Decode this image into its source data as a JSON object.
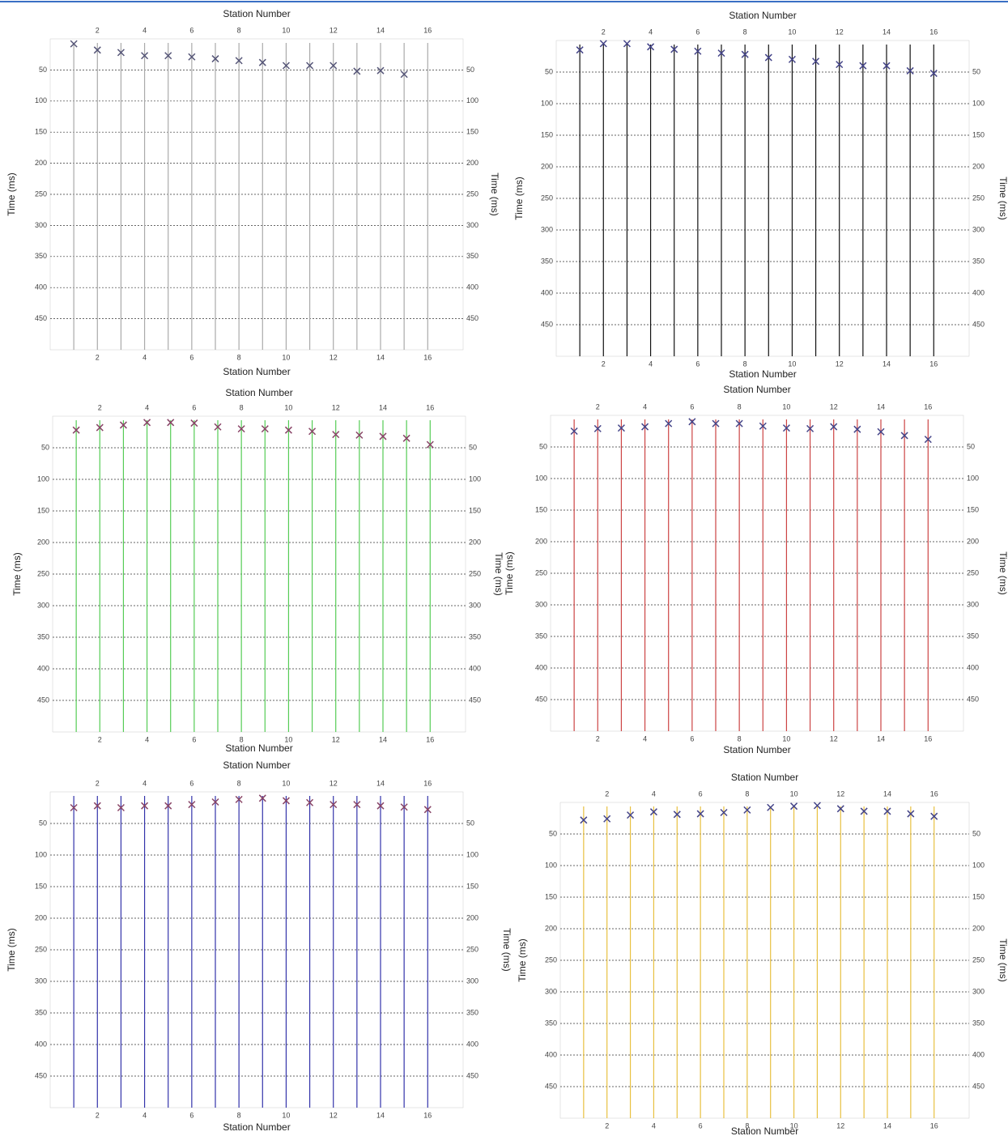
{
  "chart_data": [
    {
      "type": "scatter",
      "xlabel": "Station Number",
      "ylabel": "Time (ms)",
      "x": [
        1,
        2,
        3,
        4,
        5,
        6,
        7,
        8,
        9,
        10,
        11,
        12,
        13,
        14,
        15,
        16
      ],
      "values": [
        8,
        18,
        22,
        27,
        27,
        29,
        32,
        35,
        38,
        43,
        43,
        43,
        52,
        51,
        57,
        null
      ],
      "xlim": [
        0,
        17.5
      ],
      "ylim": [
        0,
        500
      ],
      "xticks": [
        2,
        4,
        6,
        8,
        10,
        12,
        14,
        16
      ],
      "yticks": [
        50,
        100,
        150,
        200,
        250,
        300,
        350,
        400,
        450
      ],
      "grid": true,
      "trace_color": "#aaaaaa",
      "fill_color": "#22dd22",
      "pick_color": "#555577"
    },
    {
      "type": "scatter",
      "xlabel": "Station Number",
      "ylabel": "Time (ms)",
      "x": [
        1,
        2,
        3,
        4,
        5,
        6,
        7,
        8,
        9,
        10,
        11,
        12,
        13,
        14,
        15,
        16
      ],
      "values": [
        15,
        5,
        5,
        10,
        14,
        17,
        20,
        22,
        27,
        30,
        33,
        38,
        40,
        40,
        48,
        52
      ],
      "xlim": [
        0,
        17.5
      ],
      "ylim": [
        0,
        500
      ],
      "xticks": [
        2,
        4,
        6,
        8,
        10,
        12,
        14,
        16
      ],
      "yticks": [
        50,
        100,
        150,
        200,
        250,
        300,
        350,
        400,
        450
      ],
      "grid": true,
      "trace_color": "#111111",
      "fill_color": "#dd1111",
      "pick_color": "#444488"
    },
    {
      "type": "scatter",
      "xlabel": "Station Number",
      "ylabel": "Time (ms)",
      "x": [
        1,
        2,
        3,
        4,
        5,
        6,
        7,
        8,
        9,
        10,
        11,
        12,
        13,
        14,
        15,
        16
      ],
      "values": [
        22,
        18,
        14,
        10,
        10,
        11,
        17,
        20,
        20,
        22,
        24,
        29,
        30,
        32,
        35,
        45
      ],
      "xlim": [
        0,
        17.5
      ],
      "ylim": [
        0,
        500
      ],
      "xticks": [
        2,
        4,
        6,
        8,
        10,
        12,
        14,
        16
      ],
      "yticks": [
        50,
        100,
        150,
        200,
        250,
        300,
        350,
        400,
        450
      ],
      "grid": true,
      "trace_color": "#55cc55",
      "fill_color": "#0022bb",
      "pick_color": "#884466"
    },
    {
      "type": "scatter",
      "xlabel": "Station Number",
      "ylabel": "Time (ms)",
      "x": [
        1,
        2,
        3,
        4,
        5,
        6,
        7,
        8,
        9,
        10,
        11,
        12,
        13,
        14,
        15,
        16
      ],
      "values": [
        25,
        21,
        20,
        18,
        13,
        10,
        13,
        13,
        17,
        20,
        21,
        18,
        22,
        26,
        32,
        38
      ],
      "xlim": [
        0,
        17.5
      ],
      "ylim": [
        0,
        500
      ],
      "xticks": [
        2,
        4,
        6,
        8,
        10,
        12,
        14,
        16
      ],
      "yticks": [
        50,
        100,
        150,
        200,
        250,
        300,
        350,
        400,
        450
      ],
      "grid": true,
      "trace_color": "#cc4444",
      "fill_color": "#ffaa00",
      "pick_color": "#444488"
    },
    {
      "type": "scatter",
      "xlabel": "Station Number",
      "ylabel": "Time (ms)",
      "x": [
        1,
        2,
        3,
        4,
        5,
        6,
        7,
        8,
        9,
        10,
        11,
        12,
        13,
        14,
        15,
        16
      ],
      "values": [
        25,
        22,
        25,
        22,
        22,
        20,
        16,
        12,
        10,
        14,
        17,
        20,
        20,
        22,
        24,
        28
      ],
      "xlim": [
        0,
        17.5
      ],
      "ylim": [
        0,
        500
      ],
      "xticks": [
        2,
        4,
        6,
        8,
        10,
        12,
        14,
        16
      ],
      "yticks": [
        50,
        100,
        150,
        200,
        250,
        300,
        350,
        400,
        450
      ],
      "grid": true,
      "trace_color": "#3333aa",
      "fill_color": "#aaaabb",
      "pick_color": "#884466"
    },
    {
      "type": "scatter",
      "xlabel": "Station Number",
      "ylabel": "Time (ms)",
      "x": [
        1,
        2,
        3,
        4,
        5,
        6,
        7,
        8,
        9,
        10,
        11,
        12,
        13,
        14,
        15,
        16
      ],
      "values": [
        28,
        26,
        20,
        15,
        19,
        18,
        16,
        12,
        8,
        6,
        5,
        10,
        14,
        14,
        18,
        22
      ],
      "xlim": [
        0,
        17.5
      ],
      "ylim": [
        0,
        500
      ],
      "xticks": [
        2,
        4,
        6,
        8,
        10,
        12,
        14,
        16
      ],
      "yticks": [
        50,
        100,
        150,
        200,
        250,
        300,
        350,
        400,
        450
      ],
      "grid": true,
      "trace_color": "#e8c040",
      "fill_color": "#000000",
      "pick_color": "#444488"
    }
  ]
}
